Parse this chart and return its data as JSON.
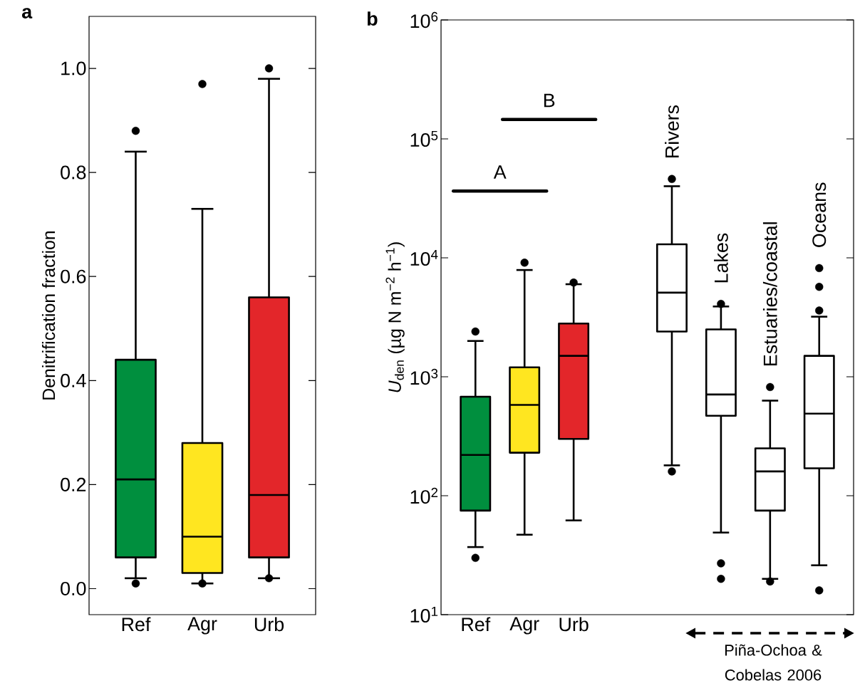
{
  "chart_data": [
    {
      "type": "box",
      "title": "a",
      "ylabel": "Denitrification fraction",
      "categories": [
        "Ref",
        "Agr",
        "Urb"
      ],
      "colors": [
        "#008f3e",
        "#ffe620",
        "#e3262a"
      ],
      "ylim": [
        -0.05,
        1.1
      ],
      "yticks": [
        {
          "value": 0,
          "label": "0.0"
        },
        {
          "value": 0.2,
          "label": "0.2"
        },
        {
          "value": 0.4,
          "label": "0.4"
        },
        {
          "value": 0.6,
          "label": "0.6"
        },
        {
          "value": 0.8,
          "label": "0.8"
        },
        {
          "value": 1,
          "label": "1.0"
        }
      ],
      "boxes": [
        {
          "low": 0.02,
          "q1": 0.06,
          "median": 0.21,
          "q3": 0.44,
          "high": 0.84,
          "outliers": [
            0.88,
            0.01
          ]
        },
        {
          "low": 0.01,
          "q1": 0.03,
          "median": 0.1,
          "q3": 0.28,
          "high": 0.73,
          "outliers": [
            0.97,
            0.01
          ]
        },
        {
          "low": 0.02,
          "q1": 0.06,
          "median": 0.18,
          "q3": 0.56,
          "high": 0.98,
          "outliers": [
            1.0,
            0.02
          ]
        }
      ]
    },
    {
      "type": "box",
      "title": "b",
      "ylabel": "*U*$_{den}$ (µg N m$^{−2}$ h$^{−1}$)",
      "log": true,
      "categories": [
        "Ref",
        "Agr",
        "Urb",
        null,
        "Rivers",
        "Lakes",
        "Estuaries/coastal",
        "Oceans"
      ],
      "colors": [
        "#008f3e",
        "#ffe620",
        "#e3262a",
        null,
        "#ffffff",
        "#ffffff",
        "#ffffff",
        "#ffffff"
      ],
      "ylim": [
        10,
        1000000
      ],
      "yticks": [
        {
          "value": 10,
          "label": "10$^{1}$"
        },
        {
          "value": 100,
          "label": "10$^{2}$"
        },
        {
          "value": 1000,
          "label": "10$^{3}$"
        },
        {
          "value": 10000,
          "label": "10$^{4}$"
        },
        {
          "value": 100000,
          "label": "10$^{5}$"
        },
        {
          "value": 1000000,
          "label": "10$^{6}$"
        }
      ],
      "boxes": [
        {
          "low": 37,
          "q1": 75,
          "median": 220,
          "q3": 680,
          "high": 2000,
          "outliers": [
            2400,
            30
          ]
        },
        {
          "low": 47,
          "q1": 230,
          "median": 580,
          "q3": 1200,
          "high": 7900,
          "outliers": [
            9100
          ]
        },
        {
          "low": 62,
          "q1": 300,
          "median": 1500,
          "q3": 2800,
          "high": 6000,
          "outliers": [
            6200
          ]
        },
        null,
        {
          "low": 180,
          "q1": 2400,
          "median": 5100,
          "q3": 13000,
          "high": 40000,
          "outliers": [
            46000,
            160
          ]
        },
        {
          "low": 49,
          "q1": 470,
          "median": 710,
          "q3": 2500,
          "high": 3900,
          "outliers": [
            4100,
            27,
            20
          ]
        },
        {
          "low": 20,
          "q1": 75,
          "median": 160,
          "q3": 250,
          "high": 630,
          "outliers": [
            820,
            19
          ]
        },
        {
          "low": 26,
          "q1": 170,
          "median": 490,
          "q3": 1500,
          "high": 3200,
          "outliers": [
            8200,
            5700,
            3600,
            16
          ]
        }
      ],
      "annotations": [
        "A",
        "B",
        "Piña-Ochoa & Cobelas 2006"
      ]
    }
  ]
}
